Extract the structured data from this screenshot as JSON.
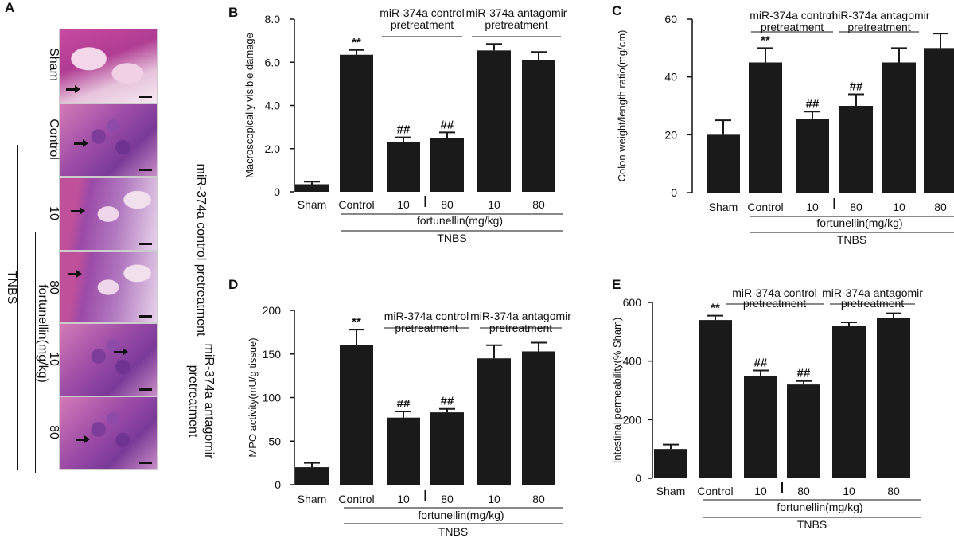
{
  "panel_a": {
    "letter": "A",
    "rows": [
      {
        "label": "Sham",
        "style": "normal"
      },
      {
        "label": "Control",
        "style": "inflamed"
      },
      {
        "label": "10",
        "style": "mild"
      },
      {
        "label": "80",
        "style": "mild"
      },
      {
        "label": "10",
        "style": "inflamed"
      },
      {
        "label": "80",
        "style": "inflamed"
      }
    ],
    "tnbs_label": "TNBS",
    "dose_label": "fortunellin(mg/kg)",
    "control_group_label": "miR-374a control pretreatment",
    "antagomir_group_label": "miR-374a antagomir pretreatment"
  },
  "chart_data": [
    {
      "id": "B",
      "type": "bar",
      "categories": [
        "Sham",
        "Control",
        "10",
        "80",
        "10",
        "80"
      ],
      "values": [
        0.35,
        6.35,
        2.3,
        2.5,
        6.55,
        6.1
      ],
      "errors": [
        0.12,
        0.22,
        0.22,
        0.25,
        0.3,
        0.38
      ],
      "annotations": [
        "",
        "**",
        "##",
        "##",
        "",
        ""
      ],
      "ylabel": "Macroscopically visible damage",
      "ylim": [
        0,
        8
      ],
      "yticks": [
        "0",
        "2.0",
        "4.0",
        "6.0",
        "8.0"
      ],
      "ytick_values": [
        0,
        2,
        4,
        6,
        8
      ],
      "group_control": "miR-374a control pretreatment",
      "group_antagomir": "miR-374a antagomir pretreatment",
      "dose_label": "fortunellin(mg/kg)",
      "tnbs_label": "TNBS"
    },
    {
      "id": "C",
      "type": "bar",
      "categories": [
        "Sham",
        "Control",
        "10",
        "80",
        "10",
        "80"
      ],
      "values": [
        20,
        45,
        25.5,
        30,
        45,
        50
      ],
      "errors": [
        5,
        5,
        2.5,
        4,
        5,
        5
      ],
      "annotations": [
        "",
        "**",
        "##",
        "##",
        "",
        ""
      ],
      "ylabel": "Colon weight/length ratio(mg/cm)",
      "ylim": [
        0,
        60
      ],
      "yticks": [
        "0",
        "20",
        "40",
        "60"
      ],
      "ytick_values": [
        0,
        20,
        40,
        60
      ],
      "group_control": "miR-374a control pretreatment",
      "group_antagomir": "miR-374a antagomir pretreatment",
      "dose_label": "fortunellin(mg/kg)",
      "tnbs_label": "TNBS"
    },
    {
      "id": "D",
      "type": "bar",
      "categories": [
        "Sham",
        "Control",
        "10",
        "80",
        "10",
        "80"
      ],
      "values": [
        20,
        160,
        77,
        83,
        145,
        153
      ],
      "errors": [
        5,
        18,
        7,
        4,
        15,
        10
      ],
      "annotations": [
        "",
        "**",
        "##",
        "##",
        "",
        ""
      ],
      "ylabel": "MPO activity(mU/g tissue)",
      "ylim": [
        0,
        200
      ],
      "yticks": [
        "0",
        "50",
        "100",
        "150",
        "200"
      ],
      "ytick_values": [
        0,
        50,
        100,
        150,
        200
      ],
      "group_control": "miR-374a control pretreatment",
      "group_antagomir": "miR-374a antagomir pretreatment",
      "dose_label": "fortunellin(mg/kg)",
      "tnbs_label": "TNBS"
    },
    {
      "id": "E",
      "type": "bar",
      "categories": [
        "Sham",
        "Control",
        "10",
        "80",
        "10",
        "80"
      ],
      "values": [
        100,
        540,
        350,
        320,
        520,
        548
      ],
      "errors": [
        15,
        15,
        18,
        12,
        12,
        15
      ],
      "annotations": [
        "",
        "**",
        "##",
        "##",
        "",
        ""
      ],
      "ylabel": "Intestinal permeability(% Sham)",
      "ylim": [
        0,
        600
      ],
      "yticks": [
        "0",
        "200",
        "400",
        "600"
      ],
      "ytick_values": [
        0,
        200,
        400,
        600
      ],
      "group_control": "miR-374a control pretreatment",
      "group_antagomir": "miR-374a antagomir pretreatment",
      "dose_label": "fortunellin(mg/kg)",
      "tnbs_label": "TNBS"
    }
  ]
}
